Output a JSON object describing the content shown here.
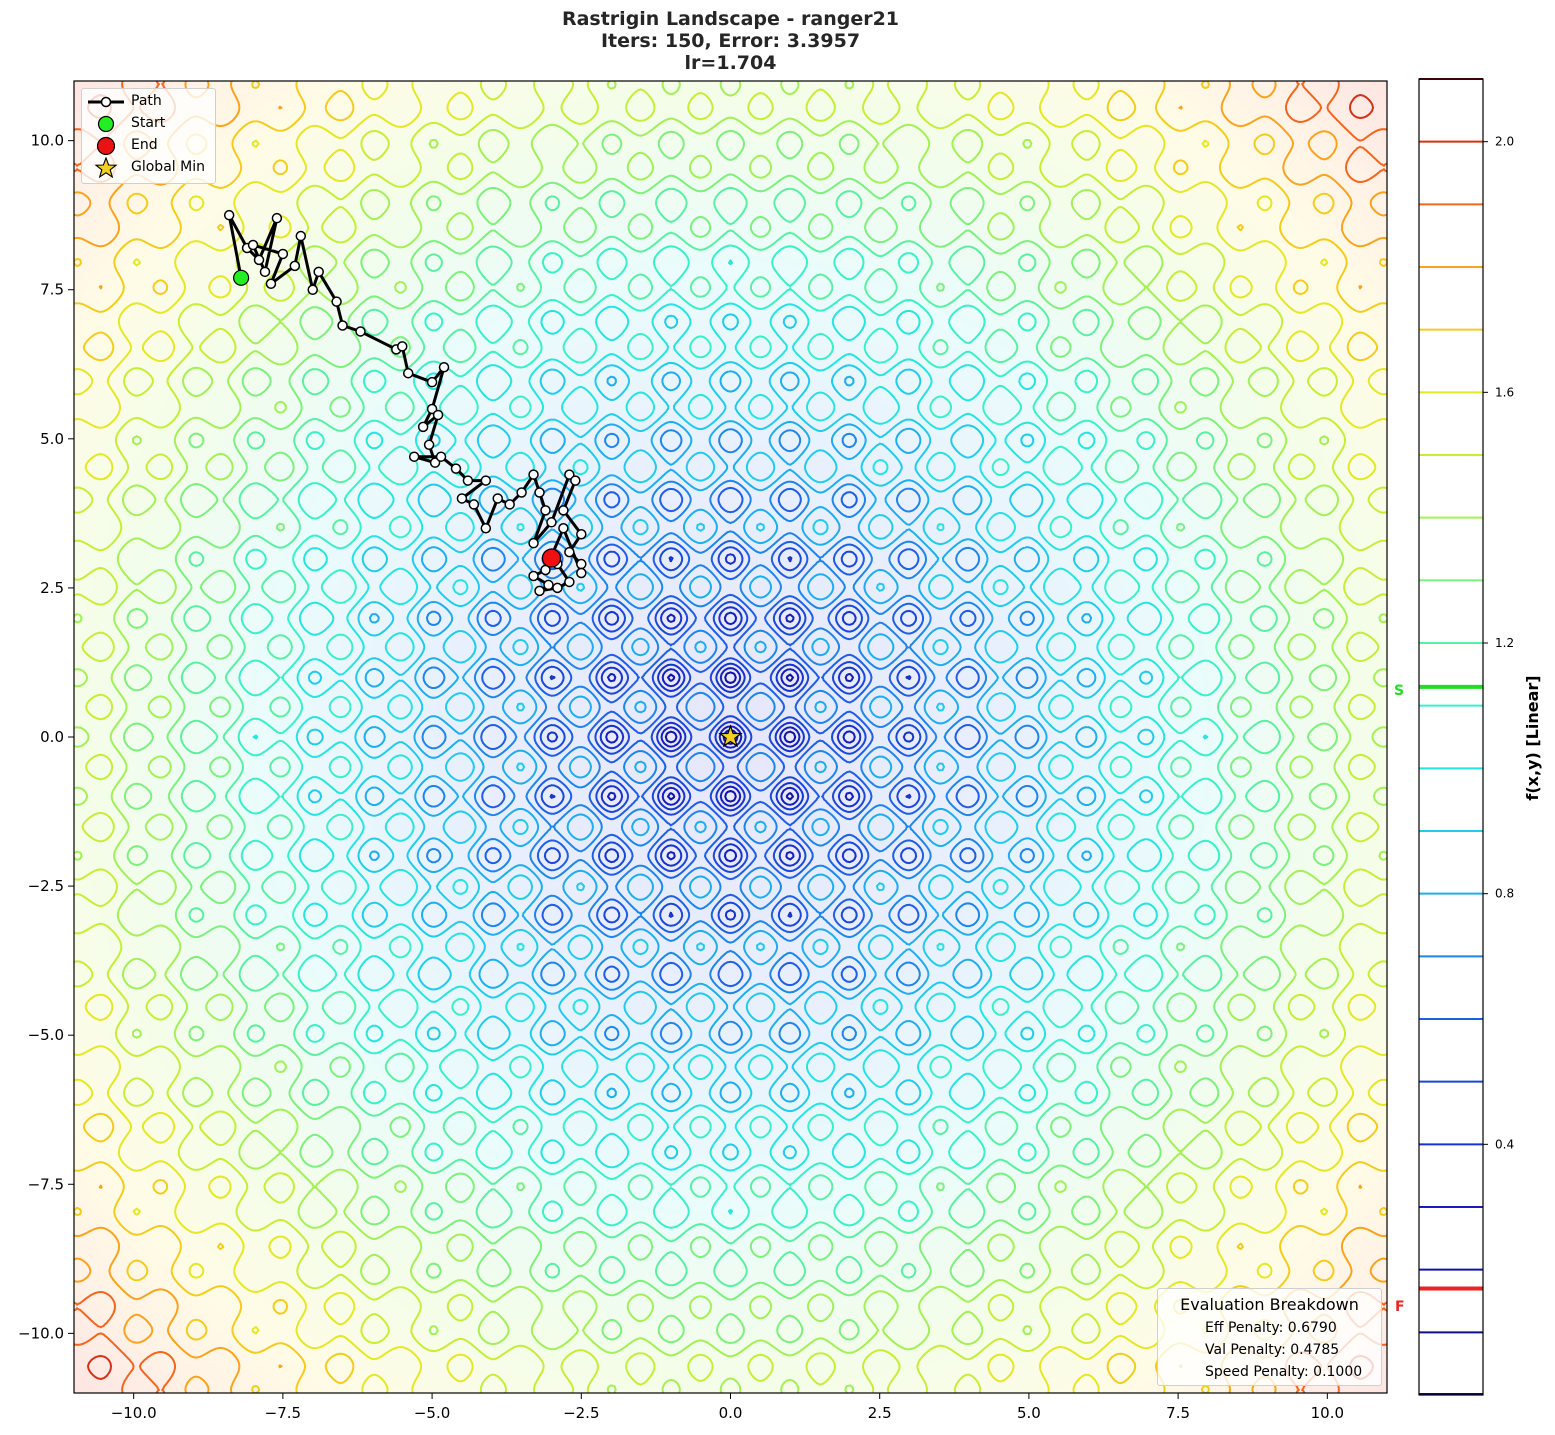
{
  "title": {
    "line1": "Rastrigin Landscape - ranger21",
    "line2": "Iters: 150, Error: 3.3957",
    "line3": "lr=1.704"
  },
  "legend": {
    "path": "Path",
    "start": "Start",
    "end": "End",
    "global_min": "Global Min"
  },
  "evaluation": {
    "header": "Evaluation Breakdown",
    "eff": "Eff Penalty: 0.6790",
    "val": "Val Penalty: 0.4785",
    "speed": "Speed Penalty: 0.1000"
  },
  "colorbar": {
    "label": "f(x,y) [Linear]",
    "ticks": [
      "0.4",
      "0.8",
      "1.2",
      "1.6",
      "2.0"
    ],
    "start_marker": "S",
    "final_marker": "F",
    "start_color": "#22dd22",
    "final_color": "#ee2222"
  },
  "colors": {
    "start": "#22ee22",
    "end": "#ee1111",
    "star": "#f5d020",
    "path": "#000000"
  },
  "chart_data": {
    "type": "contour",
    "title": "Rastrigin Landscape - ranger21\nIters: 150, Error: 3.3957\nlr=1.704",
    "xlabel": "",
    "ylabel": "",
    "colorbar_label": "f(x,y) [Linear]",
    "xlim": [
      -11,
      11
    ],
    "ylim": [
      -11,
      11
    ],
    "xticks": [
      -10.0,
      -7.5,
      -5.0,
      -2.5,
      0.0,
      2.5,
      5.0,
      7.5,
      10.0
    ],
    "yticks": [
      -10.0,
      -7.5,
      -5.0,
      -2.5,
      0.0,
      2.5,
      5.0,
      7.5,
      10.0
    ],
    "xtick_labels": [
      "−10.0",
      "−7.5",
      "−5.0",
      "−2.5",
      "0.0",
      "2.5",
      "5.0",
      "7.5",
      "10.0"
    ],
    "ytick_labels": [
      "−10.0",
      "−7.5",
      "−5.0",
      "−2.5",
      "0.0",
      "2.5",
      "5.0",
      "7.5",
      "10.0"
    ],
    "colorbar_range": [
      0.0,
      2.1
    ],
    "colorbar_ticks": [
      0.4,
      0.8,
      1.2,
      1.6,
      2.0
    ],
    "contour_levels": [
      0.1,
      0.2,
      0.3,
      0.4,
      0.5,
      0.6,
      0.7,
      0.8,
      0.9,
      1.0,
      1.1,
      1.2,
      1.3,
      1.4,
      1.5,
      1.6,
      1.7,
      1.8,
      1.9,
      2.0,
      2.1
    ],
    "start_level": 1.13,
    "final_level": 0.17,
    "function": "rastrigin (normalized, sqrt-scaled)",
    "global_min": [
      0.0,
      0.0
    ],
    "start": [
      -8.2,
      7.7
    ],
    "end": [
      -3.0,
      3.0
    ],
    "path": [
      [
        -8.2,
        7.7
      ],
      [
        -8.4,
        8.75
      ],
      [
        -8.1,
        8.2
      ],
      [
        -7.9,
        8.0
      ],
      [
        -7.6,
        8.7
      ],
      [
        -7.8,
        7.8
      ],
      [
        -8.0,
        8.25
      ],
      [
        -7.5,
        8.1
      ],
      [
        -7.7,
        7.6
      ],
      [
        -7.3,
        7.9
      ],
      [
        -7.2,
        8.4
      ],
      [
        -7.0,
        7.5
      ],
      [
        -6.9,
        7.8
      ],
      [
        -6.6,
        7.3
      ],
      [
        -6.5,
        6.9
      ],
      [
        -6.2,
        6.8
      ],
      [
        -5.6,
        6.5
      ],
      [
        -5.5,
        6.55
      ],
      [
        -5.4,
        6.1
      ],
      [
        -5.0,
        5.95
      ],
      [
        -4.8,
        6.2
      ],
      [
        -5.0,
        5.5
      ],
      [
        -5.15,
        5.2
      ],
      [
        -4.9,
        5.4
      ],
      [
        -5.05,
        4.9
      ],
      [
        -4.95,
        4.6
      ],
      [
        -5.3,
        4.7
      ],
      [
        -4.85,
        4.7
      ],
      [
        -4.6,
        4.5
      ],
      [
        -4.4,
        4.3
      ],
      [
        -4.1,
        4.3
      ],
      [
        -4.5,
        4.0
      ],
      [
        -4.3,
        3.9
      ],
      [
        -4.1,
        3.5
      ],
      [
        -3.9,
        4.0
      ],
      [
        -3.7,
        3.9
      ],
      [
        -3.5,
        4.1
      ],
      [
        -3.3,
        4.4
      ],
      [
        -3.2,
        4.1
      ],
      [
        -3.1,
        3.8
      ],
      [
        -3.3,
        3.25
      ],
      [
        -3.0,
        3.6
      ],
      [
        -2.7,
        4.4
      ],
      [
        -2.6,
        4.3
      ],
      [
        -2.8,
        3.8
      ],
      [
        -2.5,
        3.4
      ],
      [
        -2.7,
        3.1
      ],
      [
        -2.5,
        2.9
      ],
      [
        -2.5,
        2.75
      ],
      [
        -2.8,
        3.5
      ],
      [
        -3.1,
        2.8
      ],
      [
        -3.3,
        2.7
      ],
      [
        -3.05,
        2.55
      ],
      [
        -3.2,
        2.45
      ],
      [
        -2.9,
        2.5
      ],
      [
        -2.7,
        2.6
      ],
      [
        -2.9,
        2.9
      ],
      [
        -3.0,
        3.0
      ]
    ],
    "legend": [
      "Path",
      "Start",
      "End",
      "Global Min"
    ],
    "legend_position": "upper left",
    "annotation_box": {
      "title": "Evaluation Breakdown",
      "lines": [
        "Eff Penalty: 0.6790",
        "Val Penalty: 0.4785",
        "Speed Penalty: 0.1000"
      ],
      "position": "lower right"
    },
    "grid": false
  }
}
